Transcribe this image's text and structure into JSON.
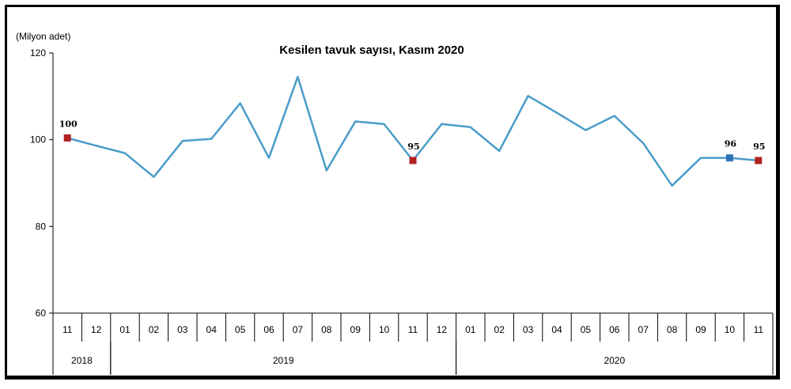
{
  "chart_data": {
    "type": "line",
    "title": "Kesilen tavuk sayısı, Kasım 2020",
    "ylabel": "(Milyon adet)",
    "xlabel": "",
    "ylim": [
      60,
      120
    ],
    "yticks": [
      60,
      80,
      100,
      120
    ],
    "grid": false,
    "legend": "none",
    "categories": [
      "11",
      "12",
      "01",
      "02",
      "03",
      "04",
      "05",
      "06",
      "07",
      "08",
      "09",
      "10",
      "11",
      "12",
      "01",
      "02",
      "03",
      "04",
      "05",
      "06",
      "07",
      "08",
      "09",
      "10",
      "11"
    ],
    "years": [
      {
        "label": "2018",
        "start": 0,
        "end": 1
      },
      {
        "label": "2019",
        "start": 2,
        "end": 13
      },
      {
        "label": "2020",
        "start": 14,
        "end": 24
      }
    ],
    "series": [
      {
        "values": [
          100.4,
          98.6,
          96.9,
          91.4,
          99.7,
          100.2,
          108.4,
          95.8,
          114.5,
          92.9,
          104.2,
          103.6,
          95.2,
          103.6,
          102.9,
          97.4,
          110.1,
          106.2,
          102.2,
          105.5,
          99.2,
          89.4,
          95.8,
          95.8,
          95.2
        ],
        "color": "#4a9cc9"
      }
    ],
    "markers": [
      {
        "index": 0,
        "label": "100",
        "color": "#b22222"
      },
      {
        "index": 12,
        "label": "95",
        "color": "#b22222"
      },
      {
        "index": 23,
        "label": "96",
        "color": "#2e75b6"
      },
      {
        "index": 24,
        "label": "95",
        "color": "#b22222"
      }
    ]
  }
}
